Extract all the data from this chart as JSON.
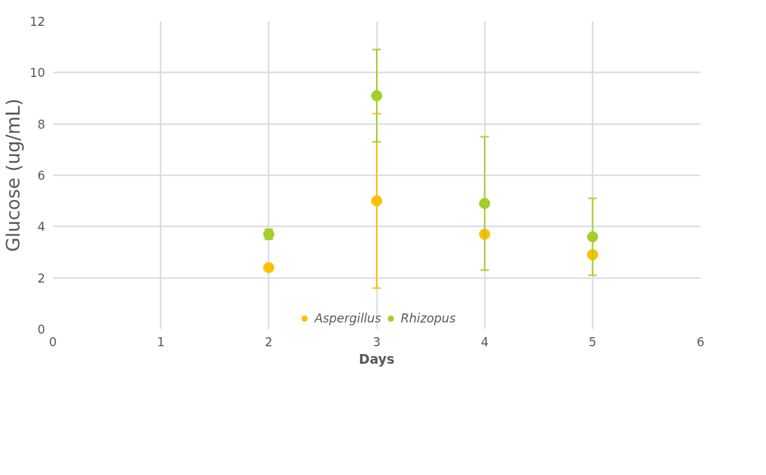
{
  "chart_data": {
    "type": "scatter",
    "xlabel": "Days",
    "ylabel": "Glucose (ug/mL)",
    "x": [
      2,
      3,
      4,
      5
    ],
    "series": [
      {
        "name": "Aspergillus",
        "color": "#ffc000",
        "values": [
          2.4,
          5.0,
          3.7,
          2.9
        ],
        "errors": [
          0.1,
          3.4,
          null,
          null
        ]
      },
      {
        "name": "Rhizopus",
        "color": "#a4cf2a",
        "values": [
          3.7,
          9.1,
          4.9,
          3.6
        ],
        "errors": [
          0.2,
          1.8,
          2.6,
          1.5
        ]
      }
    ],
    "xlim": [
      0,
      6
    ],
    "xticks": [
      0,
      1,
      2,
      3,
      4,
      5,
      6
    ],
    "ylim": [
      0,
      12
    ],
    "yticks": [
      0,
      2,
      4,
      6,
      8,
      10,
      12
    ],
    "grid": true,
    "legend": "bottom",
    "marker": "circle"
  }
}
